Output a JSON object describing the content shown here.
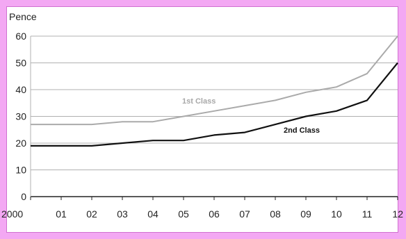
{
  "chart_data": {
    "type": "line",
    "title": "",
    "xlabel": "",
    "ylabel": "Pence",
    "categories": [
      "2000",
      "01",
      "02",
      "03",
      "04",
      "05",
      "06",
      "07",
      "08",
      "09",
      "10",
      "11",
      "12"
    ],
    "ylim": [
      0,
      60
    ],
    "yticks": [
      0,
      10,
      20,
      30,
      40,
      50,
      60
    ],
    "grid": true,
    "series": [
      {
        "name": "1st Class",
        "values": [
          27,
          27,
          27,
          28,
          28,
          30,
          32,
          34,
          36,
          39,
          41,
          46,
          60
        ],
        "color": "#aaaaaa"
      },
      {
        "name": "2nd Class",
        "values": [
          19,
          19,
          19,
          20,
          21,
          21,
          23,
          24,
          27,
          30,
          32,
          36,
          50
        ],
        "color": "#111111"
      }
    ]
  },
  "colors": {
    "background": "#f3a8f3",
    "panel": "#ffffff",
    "grid": "#b0b0b0",
    "axis": "#222222"
  }
}
